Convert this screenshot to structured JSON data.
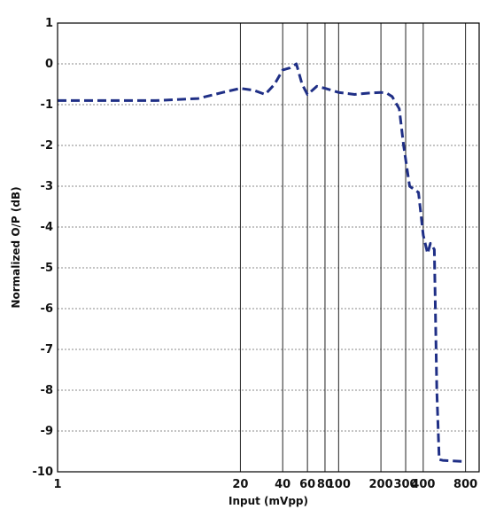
{
  "chart_data": {
    "type": "line",
    "title": "",
    "xlabel": "Input (mVpp)",
    "ylabel": "Normalized O/P (dB)",
    "xscale": "log",
    "xlim": [
      1,
      1000
    ],
    "ylim": [
      -10,
      1
    ],
    "grid": {
      "x": true,
      "y": true
    },
    "x_ticks": [
      1,
      20,
      40,
      60,
      80,
      100,
      200,
      300,
      400,
      800
    ],
    "x_tick_labels": [
      "1",
      "20",
      "40",
      "60",
      "80",
      "100",
      "200",
      "300",
      "400",
      "800"
    ],
    "y_ticks": [
      1,
      0,
      -1,
      -2,
      -3,
      -4,
      -5,
      -6,
      -7,
      -8,
      -9,
      -10
    ],
    "y_tick_labels": [
      "1",
      "0",
      "-1",
      "-2",
      "-3",
      "-4",
      "-5",
      "-6",
      "-7",
      "-8",
      "-9",
      "-10"
    ],
    "series": [
      {
        "color": "#1f2f86",
        "style": "dashed",
        "x": [
          1,
          5,
          10,
          15,
          20,
          25,
          30,
          35,
          40,
          45,
          50,
          55,
          60,
          65,
          70,
          80,
          100,
          130,
          160,
          200,
          220,
          240,
          270,
          290,
          320,
          350,
          370,
          400,
          430,
          450,
          480,
          500,
          520,
          550,
          800
        ],
        "y": [
          -0.9,
          -0.9,
          -0.85,
          -0.7,
          -0.6,
          -0.65,
          -0.75,
          -0.5,
          -0.15,
          -0.1,
          0.0,
          -0.5,
          -0.75,
          -0.65,
          -0.55,
          -0.6,
          -0.7,
          -0.75,
          -0.72,
          -0.7,
          -0.72,
          -0.8,
          -1.1,
          -2.0,
          -3.0,
          -3.1,
          -3.15,
          -4.2,
          -4.65,
          -4.4,
          -4.55,
          -8.0,
          -9.7,
          -9.72,
          -9.75
        ]
      }
    ]
  }
}
